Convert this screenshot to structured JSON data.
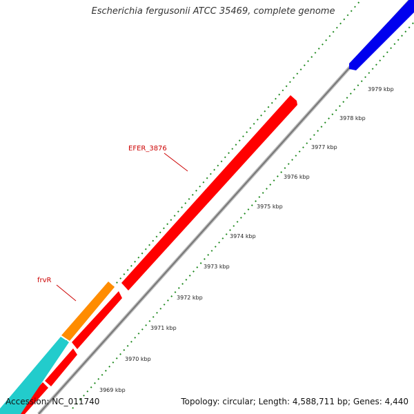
{
  "title": "Escherichia fergusonii ATCC 35469, complete genome",
  "accession": "Accession: NC_011740",
  "summary": "Topology: circular; Length: 4,588,711 bp; Genes: 4,440",
  "scale_labels": [
    "3969 kbp",
    "3970 kbp",
    "3971 kbp",
    "3972 kbp",
    "3973 kbp",
    "3974 kbp",
    "3975 kbp",
    "3976 kbp",
    "3977 kbp",
    "3978 kbp",
    "3979 kbp"
  ],
  "gene_labels": {
    "efer": "EFER_3876",
    "frvr": "frvR"
  },
  "colors": {
    "forward_gene": "#ff0000",
    "reverse_gene": "#ff0000",
    "orange_gene": "#ff8c00",
    "cyan_gene": "#22cccc",
    "blue_gene": "#0000ee",
    "backbone": "#888888",
    "ticks": "#228b22",
    "label": "#cc0000"
  }
}
